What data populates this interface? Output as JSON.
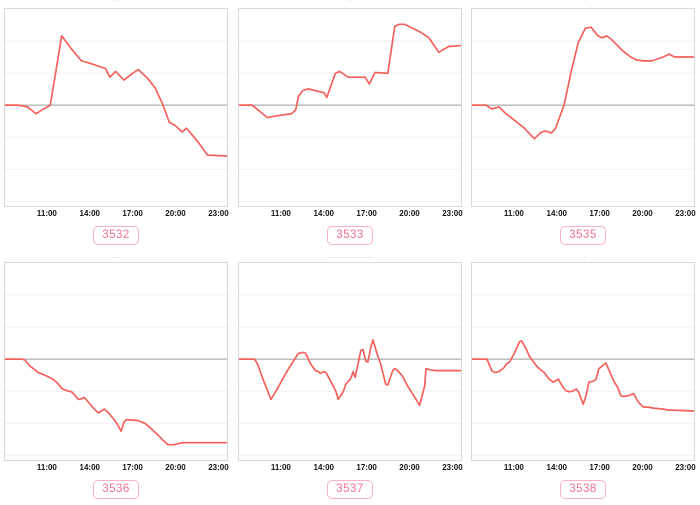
{
  "page": {
    "background": "#ffffff",
    "grid": "2 rows x 3 columns of line charts"
  },
  "colors": {
    "line": "#f4605c",
    "zero_line": "#9a9a9a",
    "gridline": "#efeff0",
    "box_border": "#d9d9d9",
    "tick_label": "#141414",
    "badge_text": "#ef7292",
    "badge_border": "#f6b3c3",
    "title_text": "#9a9a9a"
  },
  "axis": {
    "x_range_hours": [
      8,
      23.67
    ],
    "gridline_values": [
      0.667,
      0.333,
      -0.333,
      -0.667,
      -1.0
    ],
    "ticks": [
      {
        "hour": 11,
        "label": "11:00"
      },
      {
        "hour": 14,
        "label": "14:00"
      },
      {
        "hour": 17,
        "label": "17:00"
      },
      {
        "hour": 20,
        "label": "20:00"
      },
      {
        "hour": 23,
        "label": "23:00"
      }
    ]
  },
  "chart_data": [
    {
      "type": "line",
      "badge_label": "3532",
      "title_fragment": "· ·",
      "ylim": [
        -1.05,
        1.0
      ],
      "zero_line": 0,
      "grid": true,
      "legend": false,
      "x_tick_labels": [
        "11:00",
        "14:00",
        "17:00",
        "20:00",
        "23:00"
      ],
      "points": [
        [
          8.0,
          0
        ],
        [
          8.9,
          0
        ],
        [
          9.3,
          -0.01
        ],
        [
          9.6,
          -0.02
        ],
        [
          10.2,
          -0.09
        ],
        [
          10.7,
          -0.04
        ],
        [
          11.0,
          -0.02
        ],
        [
          11.2,
          0
        ],
        [
          12.0,
          0.72
        ],
        [
          12.6,
          0.6
        ],
        [
          13.4,
          0.46
        ],
        [
          13.9,
          0.44
        ],
        [
          14.7,
          0.4
        ],
        [
          15.1,
          0.38
        ],
        [
          15.4,
          0.29
        ],
        [
          15.8,
          0.35
        ],
        [
          16.4,
          0.26
        ],
        [
          17.0,
          0.33
        ],
        [
          17.4,
          0.37
        ],
        [
          18.0,
          0.29
        ],
        [
          18.6,
          0.18
        ],
        [
          18.9,
          0.08
        ],
        [
          19.1,
          0.02
        ],
        [
          19.6,
          -0.18
        ],
        [
          20.0,
          -0.21
        ],
        [
          20.5,
          -0.28
        ],
        [
          20.8,
          -0.24
        ],
        [
          21.5,
          -0.36
        ],
        [
          22.0,
          -0.46
        ],
        [
          22.3,
          -0.52
        ],
        [
          23.67,
          -0.53
        ]
      ]
    },
    {
      "type": "line",
      "badge_label": "3533",
      "title_fragment": "· ·",
      "ylim": [
        -1.05,
        1.0
      ],
      "zero_line": 0,
      "grid": true,
      "legend": false,
      "x_tick_labels": [
        "11:00",
        "14:00",
        "17:00",
        "20:00",
        "23:00"
      ],
      "points": [
        [
          8.0,
          0
        ],
        [
          8.9,
          0
        ],
        [
          9.1,
          -0.02
        ],
        [
          10.0,
          -0.13
        ],
        [
          10.7,
          -0.11
        ],
        [
          11.7,
          -0.09
        ],
        [
          12.0,
          -0.05
        ],
        [
          12.2,
          0.09
        ],
        [
          12.5,
          0.15
        ],
        [
          12.9,
          0.17
        ],
        [
          13.4,
          0.15
        ],
        [
          14.0,
          0.13
        ],
        [
          14.2,
          0.08
        ],
        [
          14.8,
          0.33
        ],
        [
          15.1,
          0.35
        ],
        [
          15.3,
          0.33
        ],
        [
          15.7,
          0.29
        ],
        [
          16.9,
          0.29
        ],
        [
          17.2,
          0.22
        ],
        [
          17.6,
          0.34
        ],
        [
          18.5,
          0.33
        ],
        [
          19.0,
          0.82
        ],
        [
          19.3,
          0.84
        ],
        [
          19.7,
          0.84
        ],
        [
          20.4,
          0.79
        ],
        [
          20.8,
          0.76
        ],
        [
          21.4,
          0.7
        ],
        [
          22.1,
          0.55
        ],
        [
          22.8,
          0.61
        ],
        [
          23.67,
          0.62
        ]
      ]
    },
    {
      "type": "line",
      "badge_label": "3535",
      "title_fragment": "· ·",
      "ylim": [
        -1.05,
        1.0
      ],
      "zero_line": 0,
      "grid": true,
      "legend": false,
      "x_tick_labels": [
        "11:00",
        "14:00",
        "17:00",
        "20:00",
        "23:00"
      ],
      "points": [
        [
          8.0,
          0
        ],
        [
          9.0,
          0
        ],
        [
          9.4,
          -0.04
        ],
        [
          9.9,
          -0.02
        ],
        [
          10.4,
          -0.09
        ],
        [
          11.1,
          -0.17
        ],
        [
          11.7,
          -0.24
        ],
        [
          12.2,
          -0.32
        ],
        [
          12.4,
          -0.35
        ],
        [
          12.9,
          -0.28
        ],
        [
          13.2,
          -0.27
        ],
        [
          13.6,
          -0.29
        ],
        [
          13.9,
          -0.24
        ],
        [
          14.5,
          0.0
        ],
        [
          15.0,
          0.35
        ],
        [
          15.5,
          0.65
        ],
        [
          16.0,
          0.8
        ],
        [
          16.4,
          0.81
        ],
        [
          16.9,
          0.72
        ],
        [
          17.2,
          0.7
        ],
        [
          17.5,
          0.72
        ],
        [
          17.8,
          0.69
        ],
        [
          18.6,
          0.57
        ],
        [
          19.2,
          0.5
        ],
        [
          19.6,
          0.47
        ],
        [
          20.1,
          0.46
        ],
        [
          20.7,
          0.46
        ],
        [
          21.5,
          0.5
        ],
        [
          21.9,
          0.53
        ],
        [
          22.3,
          0.5
        ],
        [
          23.67,
          0.5
        ]
      ]
    },
    {
      "type": "line",
      "badge_label": "3536",
      "title_fragment": "·· ·",
      "ylim": [
        -1.05,
        1.0
      ],
      "zero_line": 0,
      "grid": true,
      "legend": false,
      "x_tick_labels": [
        "11:00",
        "14:00",
        "17:00",
        "20:00",
        "23:00"
      ],
      "points": [
        [
          8.0,
          0
        ],
        [
          9.2,
          0
        ],
        [
          9.4,
          -0.01
        ],
        [
          9.75,
          -0.07
        ],
        [
          10.1,
          -0.11
        ],
        [
          10.35,
          -0.14
        ],
        [
          10.7,
          -0.16
        ],
        [
          11.0,
          -0.18
        ],
        [
          11.4,
          -0.21
        ],
        [
          11.7,
          -0.25
        ],
        [
          12.05,
          -0.31
        ],
        [
          12.4,
          -0.33
        ],
        [
          12.7,
          -0.34
        ],
        [
          12.9,
          -0.37
        ],
        [
          13.1,
          -0.41
        ],
        [
          13.25,
          -0.42
        ],
        [
          13.6,
          -0.4
        ],
        [
          13.9,
          -0.45
        ],
        [
          14.3,
          -0.52
        ],
        [
          14.6,
          -0.56
        ],
        [
          15.0,
          -0.52
        ],
        [
          15.3,
          -0.56
        ],
        [
          15.7,
          -0.63
        ],
        [
          15.9,
          -0.67
        ],
        [
          16.2,
          -0.75
        ],
        [
          16.4,
          -0.65
        ],
        [
          16.6,
          -0.63
        ],
        [
          17.4,
          -0.64
        ],
        [
          17.9,
          -0.67
        ],
        [
          18.3,
          -0.72
        ],
        [
          18.5,
          -0.75
        ],
        [
          18.8,
          -0.79
        ],
        [
          19.2,
          -0.85
        ],
        [
          19.5,
          -0.89
        ],
        [
          19.9,
          -0.89
        ],
        [
          20.2,
          -0.88
        ],
        [
          20.6,
          -0.87
        ],
        [
          23.67,
          -0.87
        ]
      ]
    },
    {
      "type": "line",
      "badge_label": "3537",
      "title_fragment": "··· ·· ··· ·· ····· ··· ···",
      "ylim": [
        -1.05,
        1.0
      ],
      "zero_line": 0,
      "grid": true,
      "legend": false,
      "x_tick_labels": [
        "11:00",
        "14:00",
        "17:00",
        "20:00",
        "23:00"
      ],
      "points": [
        [
          8.0,
          0
        ],
        [
          9.1,
          0
        ],
        [
          9.3,
          -0.05
        ],
        [
          9.75,
          -0.23
        ],
        [
          10.25,
          -0.42
        ],
        [
          10.7,
          -0.31
        ],
        [
          11.15,
          -0.19
        ],
        [
          11.5,
          -0.1
        ],
        [
          11.85,
          -0.02
        ],
        [
          12.1,
          0.04
        ],
        [
          12.2,
          0.06
        ],
        [
          12.55,
          0.07
        ],
        [
          12.7,
          0.06
        ],
        [
          13.05,
          -0.05
        ],
        [
          13.4,
          -0.12
        ],
        [
          13.6,
          -0.13
        ],
        [
          13.75,
          -0.15
        ],
        [
          13.95,
          -0.13
        ],
        [
          14.15,
          -0.14
        ],
        [
          14.65,
          -0.28
        ],
        [
          14.85,
          -0.34
        ],
        [
          15.0,
          -0.42
        ],
        [
          15.35,
          -0.34
        ],
        [
          15.55,
          -0.26
        ],
        [
          15.85,
          -0.21
        ],
        [
          15.95,
          -0.18
        ],
        [
          16.05,
          -0.13
        ],
        [
          16.2,
          -0.19
        ],
        [
          16.4,
          -0.05
        ],
        [
          16.6,
          0.09
        ],
        [
          16.75,
          0.1
        ],
        [
          16.95,
          -0.02
        ],
        [
          17.1,
          -0.03
        ],
        [
          17.3,
          0.12
        ],
        [
          17.45,
          0.2
        ],
        [
          17.8,
          0.03
        ],
        [
          18.0,
          -0.05
        ],
        [
          18.35,
          -0.26
        ],
        [
          18.5,
          -0.27
        ],
        [
          18.85,
          -0.12
        ],
        [
          19.0,
          -0.1
        ],
        [
          19.2,
          -0.12
        ],
        [
          19.55,
          -0.18
        ],
        [
          19.9,
          -0.28
        ],
        [
          20.25,
          -0.36
        ],
        [
          20.75,
          -0.48
        ],
        [
          21.1,
          -0.28
        ],
        [
          21.2,
          -0.1
        ],
        [
          21.45,
          -0.11
        ],
        [
          21.8,
          -0.12
        ],
        [
          23.67,
          -0.12
        ]
      ]
    },
    {
      "type": "line",
      "badge_label": "3538",
      "title_fragment": "· ··",
      "ylim": [
        -1.05,
        1.0
      ],
      "zero_line": 0,
      "grid": true,
      "legend": false,
      "x_tick_labels": [
        "11:00",
        "14:00",
        "17:00",
        "20:00",
        "23:00"
      ],
      "points": [
        [
          8.0,
          0
        ],
        [
          9.05,
          0
        ],
        [
          9.4,
          -0.12
        ],
        [
          9.6,
          -0.14
        ],
        [
          9.9,
          -0.13
        ],
        [
          10.25,
          -0.09
        ],
        [
          10.45,
          -0.05
        ],
        [
          10.65,
          -0.03
        ],
        [
          10.95,
          0.05
        ],
        [
          11.35,
          0.18
        ],
        [
          11.5,
          0.19
        ],
        [
          11.85,
          0.1
        ],
        [
          12.05,
          0.03
        ],
        [
          12.35,
          -0.03
        ],
        [
          12.55,
          -0.07
        ],
        [
          12.75,
          -0.1
        ],
        [
          13.1,
          -0.14
        ],
        [
          13.45,
          -0.21
        ],
        [
          13.75,
          -0.24
        ],
        [
          13.95,
          -0.22
        ],
        [
          14.1,
          -0.21
        ],
        [
          14.45,
          -0.3
        ],
        [
          14.65,
          -0.33
        ],
        [
          14.85,
          -0.34
        ],
        [
          15.15,
          -0.33
        ],
        [
          15.35,
          -0.31
        ],
        [
          15.55,
          -0.35
        ],
        [
          15.85,
          -0.47
        ],
        [
          16.05,
          -0.38
        ],
        [
          16.25,
          -0.24
        ],
        [
          16.55,
          -0.23
        ],
        [
          16.75,
          -0.21
        ],
        [
          16.95,
          -0.1
        ],
        [
          17.2,
          -0.07
        ],
        [
          17.45,
          -0.04
        ],
        [
          17.95,
          -0.21
        ],
        [
          18.3,
          -0.3
        ],
        [
          18.5,
          -0.38
        ],
        [
          18.7,
          -0.39
        ],
        [
          19.05,
          -0.38
        ],
        [
          19.4,
          -0.36
        ],
        [
          19.75,
          -0.45
        ],
        [
          20.1,
          -0.5
        ],
        [
          20.45,
          -0.5
        ],
        [
          20.8,
          -0.51
        ],
        [
          21.5,
          -0.52
        ],
        [
          21.85,
          -0.53
        ],
        [
          23.67,
          -0.54
        ]
      ]
    }
  ]
}
